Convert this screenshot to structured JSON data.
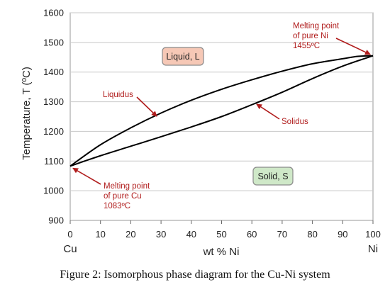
{
  "chart_data": {
    "type": "line",
    "xlabel": "wt % Ni",
    "ylabel": "Temperature, T (ºC)",
    "xlim": [
      0,
      100
    ],
    "ylim": [
      900,
      1600
    ],
    "xticks": [
      0,
      10,
      20,
      30,
      40,
      50,
      60,
      70,
      80,
      90,
      100
    ],
    "yticks": [
      900,
      1000,
      1100,
      1200,
      1300,
      1400,
      1500,
      1600
    ],
    "x_end_labels": {
      "left": "Cu",
      "right": "Ni"
    },
    "grid": true,
    "series": [
      {
        "name": "Liquidus",
        "x": [
          0,
          10,
          20,
          30,
          40,
          50,
          60,
          70,
          80,
          90,
          95,
          100
        ],
        "y": [
          1083,
          1155,
          1212,
          1262,
          1305,
          1342,
          1374,
          1403,
          1428,
          1445,
          1453,
          1455
        ]
      },
      {
        "name": "Solidus",
        "x": [
          0,
          10,
          20,
          30,
          40,
          50,
          60,
          70,
          80,
          90,
          100
        ],
        "y": [
          1083,
          1118,
          1150,
          1182,
          1215,
          1250,
          1290,
          1332,
          1378,
          1420,
          1455
        ]
      }
    ],
    "regions": [
      {
        "label": "Liquid, L",
        "fill": "#f6c8b6"
      },
      {
        "label": "Solid, S",
        "fill": "#cfe8c8"
      }
    ],
    "annotations": [
      {
        "lines": [
          "Melting point",
          "of pure Ni",
          "1455ºC"
        ]
      },
      {
        "lines": [
          "Liquidus"
        ]
      },
      {
        "lines": [
          "Solidus"
        ]
      },
      {
        "lines": [
          "Melting point",
          "of pure Cu",
          "1083ºC"
        ]
      }
    ],
    "colors": {
      "curve": "#000000",
      "annotation": "#b01c1c",
      "arrow": "#b01c1c",
      "grid": "#c8c8c8"
    }
  },
  "caption": "Figure 2: Isomorphous phase diagram for the Cu-Ni system"
}
